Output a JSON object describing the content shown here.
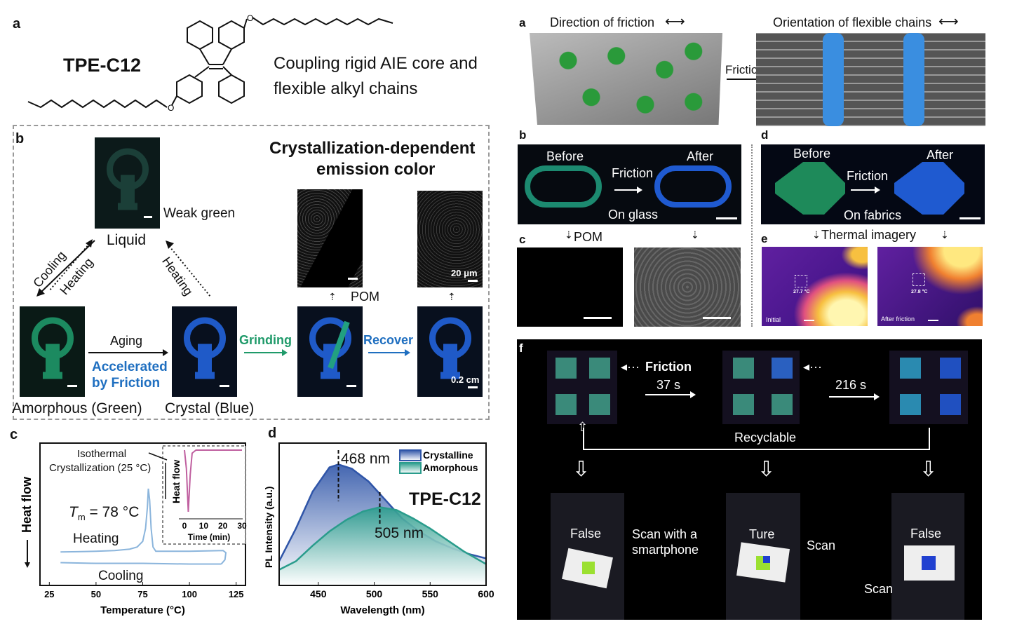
{
  "left": {
    "a": {
      "label": "a",
      "name": "TPE-C12",
      "caption_line1": "Coupling rigid AIE core and",
      "caption_line2": "flexible alkyl chains"
    },
    "b": {
      "label": "b",
      "title_line1": "Crystallization-dependent",
      "title_line2": "emission color",
      "weak_green": "Weak green",
      "liquid": "Liquid",
      "cooling": "Cooling",
      "heating1": "Heating",
      "heating2": "Heating",
      "aging": "Aging",
      "accelerated1": "Accelerated",
      "accelerated2": "by Friction",
      "grinding": "Grinding",
      "recover": "Recover",
      "pom": "POM",
      "scale_um": "20 μm",
      "scale_cm": "0.2 cm",
      "amorphous": "Amorphous  (Green)",
      "crystal": "Crystal  (Blue)"
    },
    "c": {
      "label": "c",
      "iso1": "Isothermal",
      "iso2": "Crystallization (25 °C)",
      "tm": "T",
      "tm_sub": "m",
      "tm_val": " = 78 °C",
      "heating": "Heating",
      "cooling": "Cooling",
      "inset_ylabel": "Heat flow",
      "inset_xlabel": "Time (min)"
    },
    "d": {
      "label": "d",
      "peak1": "468 nm",
      "peak2": "505 nm",
      "name": "TPE-C12"
    }
  },
  "right": {
    "a": {
      "label": "a",
      "dir": "Direction of friction",
      "orient": "Orientation of flexible chains",
      "friction": "Friction"
    },
    "b": {
      "label": "b",
      "before": "Before",
      "after": "After",
      "friction": "Friction",
      "on": "On glass"
    },
    "c": {
      "label": "c",
      "pom": "POM"
    },
    "d": {
      "label": "d",
      "before": "Before",
      "after": "After",
      "friction": "Friction",
      "on": "On fabrics"
    },
    "e": {
      "label": "e",
      "title": "Thermal imagery",
      "t1": "27.7 °C",
      "t2": "27.8 °C",
      "initial": "Initial",
      "after": "After friction"
    },
    "f": {
      "label": "f",
      "friction": "Friction",
      "t1": "37 s",
      "t2": "216 s",
      "recyclable": "Recyclable",
      "false1": "False",
      "scan_phone1": "Scan with a",
      "scan_phone2": "smartphone",
      "ture": "Ture",
      "scan1": "Scan",
      "false2": "False",
      "scan2": "Scan"
    }
  },
  "colors": {
    "green": "#1f9a6a",
    "blue": "#1f5fd0",
    "crystalline": "#2f55a8",
    "amorphous": "#2a9c8c",
    "dsc": "#8bb5dc",
    "inset": "#c060a0"
  },
  "chart_data": [
    {
      "type": "line",
      "panel": "c",
      "xlabel": "Temperature (°C)",
      "ylabel": "Heat flow",
      "xlim": [
        20,
        130
      ],
      "xticks": [
        25,
        50,
        75,
        100,
        125
      ],
      "yticks": [],
      "series": [
        {
          "name": "Heating",
          "x": [
            31,
            40,
            50,
            60,
            68,
            72,
            75,
            76.5,
            77.5,
            78,
            78.7,
            79.5,
            80.5,
            82,
            100,
            118,
            119.5,
            119,
            117
          ],
          "y": [
            0.235,
            0.237,
            0.24,
            0.245,
            0.255,
            0.27,
            0.31,
            0.4,
            0.55,
            0.68,
            0.6,
            0.4,
            0.27,
            0.24,
            0.24,
            0.245,
            0.23,
            0.18,
            0.15
          ]
        },
        {
          "name": "Cooling",
          "x": [
            117,
            100,
            75,
            50,
            31
          ],
          "y": [
            0.15,
            0.15,
            0.155,
            0.155,
            0.16
          ]
        }
      ],
      "inset": {
        "xlabel": "Time (min)",
        "ylabel": "Heat flow",
        "xticks": [
          0,
          10,
          20,
          30
        ],
        "x": [
          0,
          1,
          2,
          3,
          4,
          6,
          30
        ],
        "y": [
          1,
          0.7,
          0,
          0.6,
          0.95,
          1,
          1
        ]
      }
    },
    {
      "type": "area",
      "panel": "d",
      "xlabel": "Wavelength (nm)",
      "ylabel": "PL Intensity (a.u.)",
      "xlim": [
        415,
        600
      ],
      "xticks": [
        450,
        500,
        550,
        600
      ],
      "legend": "top-right",
      "series": [
        {
          "name": "Crystalline",
          "x": [
            415,
            430,
            445,
            460,
            468,
            480,
            495,
            510,
            525,
            540,
            555,
            570,
            585,
            600
          ],
          "y": [
            0.17,
            0.4,
            0.66,
            0.83,
            0.85,
            0.82,
            0.73,
            0.6,
            0.47,
            0.38,
            0.31,
            0.26,
            0.22,
            0.19
          ]
        },
        {
          "name": "Amorphous",
          "x": [
            415,
            430,
            445,
            460,
            475,
            490,
            505,
            520,
            535,
            550,
            565,
            580,
            600
          ],
          "y": [
            0.11,
            0.17,
            0.28,
            0.38,
            0.46,
            0.52,
            0.55,
            0.53,
            0.47,
            0.4,
            0.32,
            0.24,
            0.15
          ]
        }
      ]
    }
  ]
}
